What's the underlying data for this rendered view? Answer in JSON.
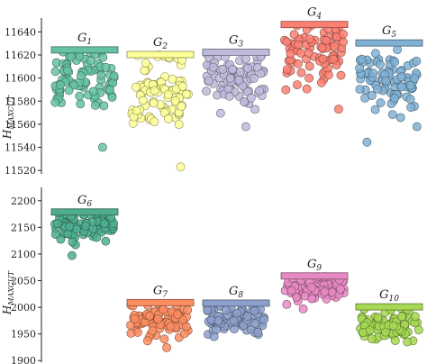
{
  "chart_data": [
    {
      "type": "scatter",
      "ylabel": "H_MAXCUT",
      "ylim": [
        11517,
        11652
      ],
      "yticks": [
        11520,
        11540,
        11560,
        11580,
        11600,
        11620,
        11640
      ],
      "groups": [
        {
          "name": "G",
          "sub": "1",
          "color": "#66c2a5",
          "bar": 11624,
          "center": 11600,
          "spread": 15,
          "tail": 11540
        },
        {
          "name": "G",
          "sub": "2",
          "color": "#ffff99",
          "bar": 11620,
          "center": 11587,
          "spread": 18,
          "tail": 11523
        },
        {
          "name": "G",
          "sub": "3",
          "color": "#bebada",
          "bar": 11622,
          "center": 11601,
          "spread": 14,
          "tail": 11558
        },
        {
          "name": "G",
          "sub": "4",
          "color": "#fb8072",
          "bar": 11646,
          "center": 11621,
          "spread": 13,
          "tail": 11573
        },
        {
          "name": "G",
          "sub": "5",
          "color": "#80b1d3",
          "bar": 11630,
          "center": 11600,
          "spread": 13,
          "tail": 11558
        }
      ]
    },
    {
      "type": "scatter",
      "ylabel": "H_MAXCUT",
      "ylim": [
        1897,
        2225
      ],
      "yticks": [
        1900,
        1950,
        2000,
        2050,
        2100,
        2150,
        2200
      ],
      "groups": [
        {
          "name": "G",
          "sub": "6",
          "color": "#4fae90",
          "bar": 2178,
          "center": 2150,
          "spread": 15,
          "tail": 2097,
          "col": 0
        },
        {
          "name": "G",
          "sub": "7",
          "color": "#fc8d62",
          "bar": 2008,
          "center": 1977,
          "spread": 16,
          "tail": 1937,
          "col": 1
        },
        {
          "name": "G",
          "sub": "8",
          "color": "#8da0cb",
          "bar": 2007,
          "center": 1978,
          "spread": 15,
          "tail": 1945,
          "col": 2
        },
        {
          "name": "G",
          "sub": "9",
          "color": "#e78ac3",
          "bar": 2058,
          "center": 2035,
          "spread": 12,
          "tail": 1997,
          "col": 3
        },
        {
          "name": "G",
          "sub": "10",
          "color": "#a6d854",
          "bar": 2000,
          "center": 1966,
          "spread": 14,
          "tail": 1935,
          "col": 4
        }
      ]
    }
  ]
}
